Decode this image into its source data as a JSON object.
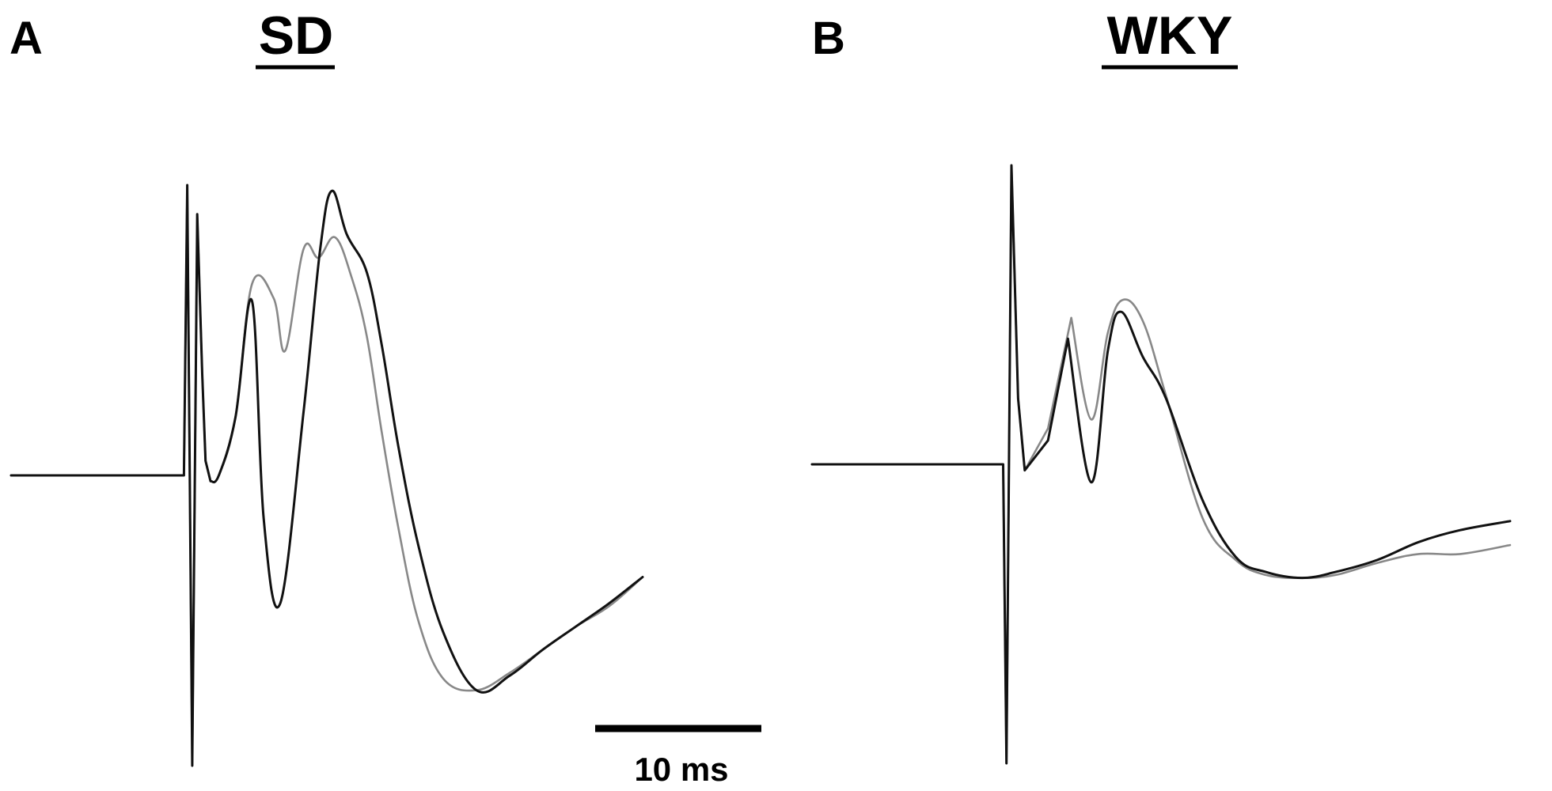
{
  "figure": {
    "panels": [
      {
        "letter": "A",
        "title": "SD"
      },
      {
        "letter": "B",
        "title": "WKY"
      }
    ],
    "scale_bar": {
      "label": "10 ms",
      "duration_ms": 10
    }
  },
  "chart_data": [
    {
      "type": "line",
      "panel": "A",
      "title": "SD",
      "xlabel": "",
      "ylabel": "",
      "grid": false,
      "legend": "none",
      "series": [
        {
          "color": "#888888",
          "t": [
            0,
            10.4,
            10.6,
            10.9,
            11.2,
            11.5,
            11.7,
            12.0,
            12.5,
            13.5,
            14.5,
            15.8,
            16.5,
            17.6,
            18.5,
            19.5,
            20.5,
            21.4,
            22.3,
            23.3,
            24.5,
            26,
            28,
            30,
            32,
            34,
            36,
            38
          ],
          "v": [
            0,
            0,
            1.0,
            -1.0,
            0.9,
            0.35,
            0.05,
            -0.02,
            0.0,
            0.2,
            0.66,
            0.61,
            0.43,
            0.78,
            0.75,
            0.82,
            0.68,
            0.48,
            0.15,
            -0.18,
            -0.5,
            -0.7,
            -0.74,
            -0.68,
            -0.6,
            -0.52,
            -0.45,
            -0.35
          ]
        },
        {
          "color": "#111111",
          "t": [
            0,
            10.4,
            10.6,
            10.9,
            11.2,
            11.5,
            11.7,
            12.0,
            12.5,
            13.5,
            14.5,
            15.2,
            16.2,
            17.6,
            18.6,
            19.3,
            20.2,
            21.4,
            22.3,
            23.3,
            24.5,
            26,
            28,
            30,
            32,
            34,
            36,
            38
          ],
          "v": [
            0,
            0,
            1.0,
            -1.0,
            0.9,
            0.35,
            0.05,
            -0.02,
            0.0,
            0.2,
            0.6,
            -0.15,
            -0.44,
            0.22,
            0.78,
            0.98,
            0.83,
            0.7,
            0.45,
            0.1,
            -0.24,
            -0.54,
            -0.74,
            -0.69,
            -0.6,
            -0.52,
            -0.44,
            -0.35
          ]
        }
      ]
    },
    {
      "type": "line",
      "panel": "B",
      "title": "WKY",
      "xlabel": "",
      "ylabel": "",
      "grid": false,
      "legend": "none",
      "series": [
        {
          "color": "#888888",
          "t": [
            0,
            11.5,
            11.7,
            12.0,
            12.4,
            12.8,
            14.2,
            15.6,
            16.8,
            17.8,
            18.7,
            19.9,
            21.3,
            23.5,
            25.5,
            27.3,
            29.5,
            31.5,
            34,
            36.5,
            39,
            42
          ],
          "v": [
            0,
            0,
            -1.0,
            1.0,
            0.22,
            -0.02,
            0.12,
            0.49,
            0.15,
            0.44,
            0.55,
            0.48,
            0.23,
            -0.18,
            -0.32,
            -0.37,
            -0.38,
            -0.37,
            -0.33,
            -0.3,
            -0.3,
            -0.27
          ]
        },
        {
          "color": "#111111",
          "t": [
            0,
            11.5,
            11.7,
            12.0,
            12.4,
            12.8,
            14.2,
            15.4,
            16.8,
            17.8,
            18.6,
            19.9,
            21.3,
            23.5,
            25.5,
            27.3,
            29.5,
            31.5,
            34,
            36.5,
            39,
            42
          ],
          "v": [
            0,
            0,
            -1.0,
            1.0,
            0.22,
            -0.02,
            0.08,
            0.42,
            -0.06,
            0.38,
            0.51,
            0.36,
            0.22,
            -0.12,
            -0.31,
            -0.36,
            -0.38,
            -0.36,
            -0.32,
            -0.26,
            -0.22,
            -0.19
          ]
        }
      ]
    }
  ]
}
